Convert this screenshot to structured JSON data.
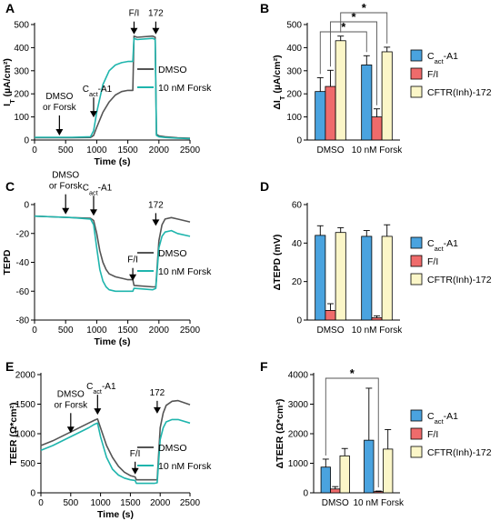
{
  "colors": {
    "dmso": "#555555",
    "forsk": "#1fb5ad",
    "cact": "#4aa3df",
    "fi": "#ef6b6b",
    "cftr": "#fbf6c8"
  },
  "chart_data": [
    {
      "id": "A",
      "panel_label": "A",
      "type": "line",
      "xlabel": "Time (s)",
      "ylabel_main": "I",
      "ylabel_sub": "T",
      "ylabel_tail": " (µA/cm²)",
      "xlim": [
        0,
        2500
      ],
      "ylim": [
        0,
        500
      ],
      "xticks": [
        0,
        500,
        1000,
        1500,
        2000,
        2500
      ],
      "yticks": [
        0,
        100,
        200,
        300,
        400,
        500
      ],
      "legend": [
        "DMSO",
        "10 nM Forsk"
      ],
      "legend_position": "right",
      "annotations": [
        {
          "line1": "DMSO",
          "line2": "or Forsk",
          "x": 400,
          "y_arrow": 12
        },
        {
          "line1": "C",
          "sub": "act",
          "tail": "-A1",
          "x": 950,
          "y_arrow": 90
        },
        {
          "line1": "F/I",
          "x": 1600,
          "y_arrow": 450
        },
        {
          "line1": "172",
          "x": 1950,
          "y_arrow": 450
        }
      ],
      "series": [
        {
          "name": "DMSO",
          "color_key": "dmso",
          "x": [
            0,
            300,
            600,
            900,
            950,
            1000,
            1100,
            1200,
            1300,
            1400,
            1500,
            1580,
            1600,
            1650,
            1900,
            1940,
            1960,
            2000,
            2100,
            2300,
            2500
          ],
          "y": [
            10,
            10,
            10,
            11,
            20,
            55,
            120,
            165,
            195,
            210,
            215,
            215,
            450,
            445,
            450,
            445,
            25,
            18,
            14,
            10,
            8
          ]
        },
        {
          "name": "10 nM Forsk",
          "color_key": "forsk",
          "x": [
            0,
            300,
            600,
            900,
            950,
            1000,
            1100,
            1200,
            1300,
            1400,
            1500,
            1580,
            1600,
            1650,
            1900,
            1940,
            1960,
            2000,
            2100,
            2300,
            2500
          ],
          "y": [
            12,
            12,
            12,
            14,
            40,
            120,
            240,
            300,
            325,
            335,
            340,
            340,
            440,
            435,
            440,
            435,
            20,
            14,
            11,
            8,
            6
          ]
        }
      ]
    },
    {
      "id": "B",
      "panel_label": "B",
      "type": "bar",
      "ylabel_main": "ΔI",
      "ylabel_sub": "T",
      "ylabel_tail": " (µA/cm²)",
      "categories": [
        "DMSO",
        "10 nM Forsk"
      ],
      "ylim": [
        0,
        500
      ],
      "yticks": [
        0,
        100,
        200,
        300,
        400,
        500
      ],
      "legend_position": "right",
      "series": [
        {
          "name": "C",
          "sub": "act",
          "tail": "-A1",
          "color_key": "cact",
          "values": [
            210,
            325
          ],
          "err": [
            60,
            40
          ]
        },
        {
          "name": "F/I",
          "color_key": "fi",
          "values": [
            232,
            100
          ],
          "err": [
            70,
            35
          ]
        },
        {
          "name": "CFTR(Inh)-172",
          "color_key": "cftr",
          "values": [
            430,
            382
          ],
          "err": [
            20,
            20
          ]
        }
      ],
      "significance": [
        {
          "label": "*",
          "from": [
            0,
            0
          ],
          "to": [
            1,
            0
          ]
        },
        {
          "label": "*",
          "from": [
            0,
            1
          ],
          "to": [
            1,
            1
          ]
        },
        {
          "label": "*",
          "from": [
            0,
            2
          ],
          "to": [
            1,
            2
          ]
        }
      ]
    },
    {
      "id": "C",
      "panel_label": "C",
      "type": "line",
      "xlabel": "Time (s)",
      "ylabel_main": "TEPD",
      "ylabel_sub": "",
      "ylabel_tail": "",
      "xlim": [
        0,
        2500
      ],
      "ylim": [
        -80,
        0
      ],
      "xticks": [
        0,
        500,
        1000,
        1500,
        2000,
        2500
      ],
      "yticks": [
        -80,
        -60,
        -40,
        -20,
        0
      ],
      "legend": [
        "DMSO",
        "10 nM Forsk"
      ],
      "legend_position": "right",
      "annotations": [
        {
          "line1": "DMSO",
          "line2": "or Forsk",
          "x": 500,
          "y_arrow": -8
        },
        {
          "line1": "C",
          "sub": "act",
          "tail": "-A1",
          "x": 950,
          "y_arrow": -9
        },
        {
          "line1": "F/I",
          "x": 1580,
          "y_arrow": -54
        },
        {
          "line1": "172",
          "x": 1950,
          "y_arrow": -16
        }
      ],
      "series": [
        {
          "name": "DMSO",
          "color_key": "dmso",
          "x": [
            0,
            300,
            600,
            900,
            950,
            1000,
            1050,
            1100,
            1150,
            1200,
            1300,
            1400,
            1500,
            1580,
            1600,
            1900,
            1950,
            2000,
            2050,
            2100,
            2200,
            2300,
            2500
          ],
          "y": [
            -8,
            -8.5,
            -9,
            -9.5,
            -11,
            -20,
            -32,
            -40,
            -45,
            -48,
            -50,
            -51,
            -52,
            -52,
            -56,
            -57,
            -57,
            -25,
            -14,
            -10,
            -9,
            -10,
            -12
          ]
        },
        {
          "name": "10 nM Forsk",
          "color_key": "forsk",
          "x": [
            0,
            300,
            600,
            900,
            950,
            1000,
            1050,
            1100,
            1150,
            1200,
            1300,
            1400,
            1500,
            1580,
            1600,
            1900,
            1950,
            2000,
            2050,
            2100,
            2200,
            2300,
            2500
          ],
          "y": [
            -8,
            -8.5,
            -9,
            -10,
            -14,
            -30,
            -45,
            -53,
            -57,
            -59,
            -60,
            -60,
            -60,
            -60,
            -58,
            -59,
            -58,
            -30,
            -22,
            -19,
            -18,
            -20,
            -22
          ]
        }
      ]
    },
    {
      "id": "D",
      "panel_label": "D",
      "type": "bar",
      "ylabel_main": "ΔTEPD (mV)",
      "ylabel_sub": "",
      "ylabel_tail": "",
      "categories": [
        "DMSO",
        "10 nM Forsk"
      ],
      "ylim": [
        0,
        60
      ],
      "yticks": [
        0,
        20,
        40,
        60
      ],
      "legend_position": "right",
      "series": [
        {
          "name": "C",
          "sub": "act",
          "tail": "-A1",
          "color_key": "cact",
          "values": [
            44,
            43.5
          ],
          "err": [
            5,
            3
          ]
        },
        {
          "name": "F/I",
          "color_key": "fi",
          "values": [
            5,
            1.2
          ],
          "err": [
            3.5,
            1
          ]
        },
        {
          "name": "CFTR(Inh)-172",
          "color_key": "cftr",
          "values": [
            45.5,
            43.5
          ],
          "err": [
            2.5,
            6
          ]
        }
      ],
      "significance": []
    },
    {
      "id": "E",
      "panel_label": "E",
      "type": "line",
      "xlabel": "Time (s)",
      "ylabel_main": "TEER (Ω*cm²)",
      "ylabel_sub": "",
      "ylabel_tail": "",
      "xlim": [
        0,
        2500
      ],
      "ylim": [
        0,
        2000
      ],
      "xticks": [
        0,
        500,
        1000,
        1500,
        2000,
        2500
      ],
      "yticks": [
        0,
        500,
        1000,
        1500,
        2000
      ],
      "legend": [
        "DMSO",
        "10 nM Forsk"
      ],
      "legend_position": "right",
      "annotations": [
        {
          "line1": "DMSO",
          "line2": "or Forsk",
          "x": 500,
          "y_arrow": 980
        },
        {
          "line1": "C",
          "sub": "act",
          "tail": "-A1",
          "x": 950,
          "y_arrow": 1290
        },
        {
          "line1": "F/I",
          "x": 1580,
          "y_arrow": 280
        },
        {
          "line1": "172",
          "x": 1950,
          "y_arrow": 1310
        }
      ],
      "series": [
        {
          "name": "DMSO",
          "color_key": "dmso",
          "x": [
            0,
            200,
            400,
            600,
            800,
            900,
            950,
            1000,
            1100,
            1200,
            1300,
            1400,
            1500,
            1580,
            1600,
            1900,
            1950,
            2000,
            2050,
            2100,
            2200,
            2300,
            2500
          ],
          "y": [
            800,
            880,
            980,
            1080,
            1180,
            1230,
            1250,
            1100,
            800,
            600,
            450,
            350,
            290,
            270,
            220,
            220,
            220,
            1100,
            1350,
            1480,
            1550,
            1560,
            1490
          ]
        },
        {
          "name": "10 nM Forsk",
          "color_key": "forsk",
          "x": [
            0,
            200,
            400,
            600,
            800,
            900,
            950,
            1000,
            1100,
            1200,
            1300,
            1400,
            1500,
            1580,
            1600,
            1900,
            1950,
            2000,
            2050,
            2100,
            2200,
            2300,
            2500
          ],
          "y": [
            720,
            800,
            900,
            1000,
            1100,
            1160,
            1180,
            950,
            600,
            400,
            300,
            250,
            220,
            210,
            160,
            160,
            170,
            900,
            1100,
            1200,
            1240,
            1240,
            1180
          ]
        }
      ]
    },
    {
      "id": "F",
      "panel_label": "F",
      "type": "bar",
      "ylabel_main": "ΔTEER (Ω*cm²)",
      "ylabel_sub": "",
      "ylabel_tail": "",
      "categories": [
        "DMSO",
        "10 nM Forsk"
      ],
      "ylim": [
        0,
        4000
      ],
      "yticks": [
        0,
        1000,
        2000,
        3000,
        4000
      ],
      "legend_position": "right",
      "series": [
        {
          "name": "C",
          "sub": "act",
          "tail": "-A1",
          "color_key": "cact",
          "values": [
            870,
            1780
          ],
          "err": [
            270,
            1760
          ]
        },
        {
          "name": "F/I",
          "color_key": "fi",
          "values": [
            130,
            40
          ],
          "err": [
            80,
            20
          ]
        },
        {
          "name": "CFTR(Inh)-172",
          "color_key": "cftr",
          "values": [
            1250,
            1480
          ],
          "err": [
            250,
            660
          ]
        }
      ],
      "significance": [
        {
          "label": "*",
          "from": [
            0,
            0
          ],
          "to": [
            1,
            1
          ]
        }
      ]
    }
  ]
}
